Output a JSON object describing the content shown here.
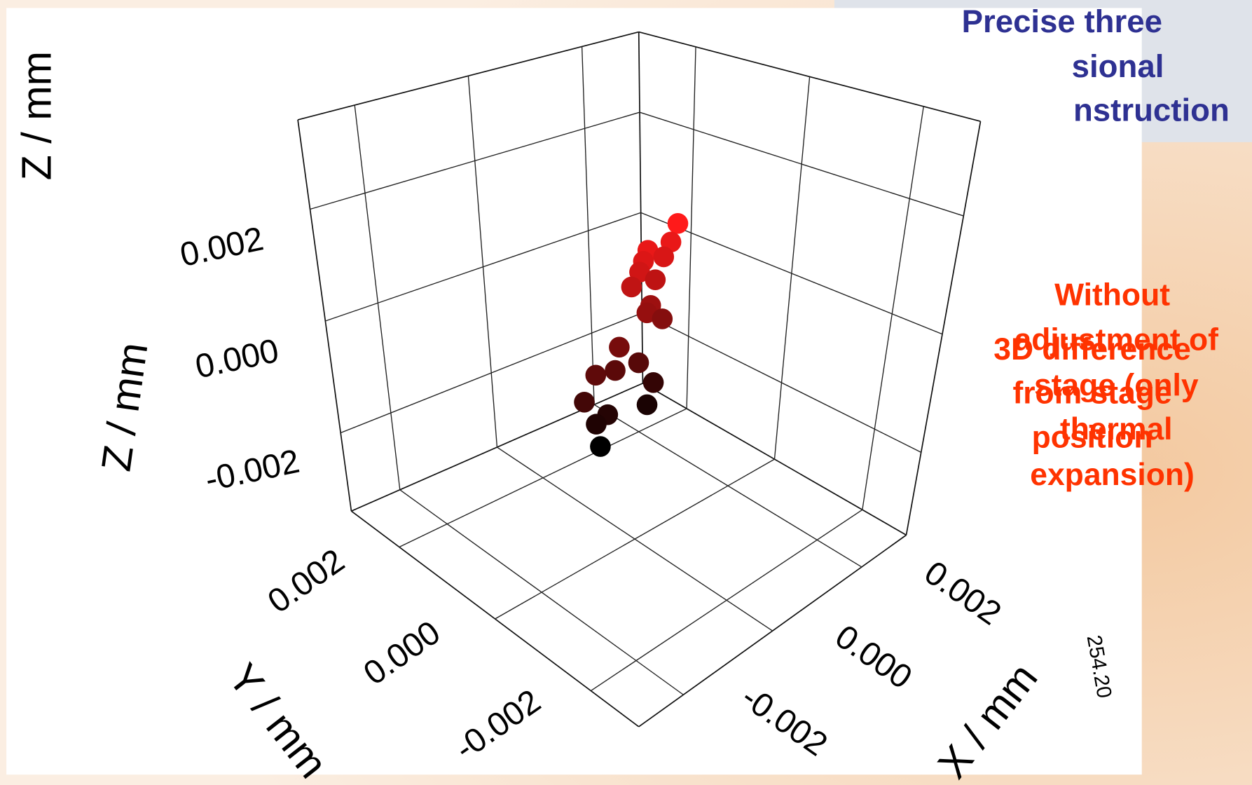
{
  "chart_data": {
    "type": "scatter3d",
    "xlabel": "X / mm",
    "ylabel": "Y / mm",
    "zlabels": [
      "Z / mm",
      "Z / mm"
    ],
    "xlim": [
      -0.003,
      0.003
    ],
    "ylim": [
      -0.003,
      0.003
    ],
    "zlim": [
      -0.0034,
      0.0036
    ],
    "xticks": [
      -0.002,
      {
        "value": 0,
        "label": "0.000"
      },
      0.002
    ],
    "yticks": [
      -0.002,
      {
        "value": 0,
        "label": "0.000"
      },
      0.002
    ],
    "zticks": [
      -0.002,
      {
        "value": 0,
        "label": "0.000"
      },
      0.002
    ],
    "grid": true,
    "series": [
      {
        "colormap": [
          "#000000",
          "#ff1a1a"
        ],
        "x": [
          0.00074,
          0.00062,
          0.00019,
          0.00011,
          0.00049,
          4e-05,
          0.00034,
          -0.00011,
          0.00026,
          0.00019,
          0.00049,
          -0.00034,
          -0.0008,
          -0.00042,
          4e-05,
          0.00034,
          -0.00103,
          -0.00057,
          -0.0008,
          0.00022,
          -0.00072
        ],
        "y": [
          0,
          0,
          0,
          0,
          0,
          0,
          0,
          0,
          0,
          0,
          0,
          0,
          0,
          0,
          0,
          0,
          0,
          0,
          0,
          0,
          0
        ],
        "z": [
          0.00169,
          0.00141,
          0.00141,
          0.00125,
          0.0012,
          0.00109,
          0.00086,
          0.00089,
          0.00045,
          0.00035,
          0.00014,
          -4e-05,
          -0.00034,
          -0.0004,
          -0.00044,
          -0.00089,
          -0.0007,
          -0.00108,
          -0.00115,
          -0.00122,
          -0.00155
        ]
      }
    ],
    "annotations": {
      "header": [
        "Precise three",
        "sional",
        "nstruction"
      ],
      "note_a": [
        "Without",
        "adjustment of",
        "stage (only",
        "thermal",
        "expansion)"
      ],
      "note_b": [
        "3D difference",
        "from stage",
        "position"
      ],
      "stamp": "254.20"
    }
  }
}
